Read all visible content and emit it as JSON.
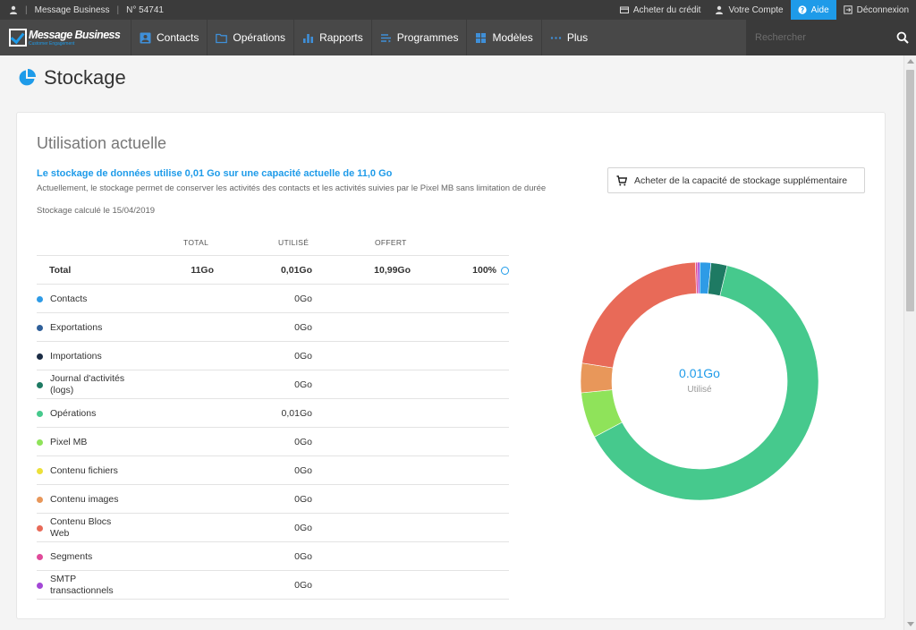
{
  "topbar": {
    "account": "Message Business",
    "account_number": "N° 54741",
    "buy_credit": "Acheter du crédit",
    "my_account": "Votre Compte",
    "help": "Aide",
    "logout": "Déconnexion"
  },
  "nav": {
    "logo": "Message Business",
    "logo_sub": "Customer Engagement",
    "items": [
      {
        "label": "Contacts",
        "icon": "contacts-icon"
      },
      {
        "label": "Opérations",
        "icon": "folder-icon"
      },
      {
        "label": "Rapports",
        "icon": "bar-chart-icon"
      },
      {
        "label": "Programmes",
        "icon": "programs-icon"
      },
      {
        "label": "Modèles",
        "icon": "templates-icon"
      },
      {
        "label": "Plus",
        "icon": "more-icon"
      }
    ],
    "search_placeholder": "Rechercher"
  },
  "page": {
    "title": "Stockage"
  },
  "card": {
    "title": "Utilisation actuelle",
    "summary": "Le stockage de données utilise 0,01 Go sur une capacité actuelle de 11,0 Go",
    "description": "Actuellement, le stockage permet de conserver les activités des contacts et les activités suivies par le Pixel MB sans limitation de durée",
    "calc_date": "Stockage calculé le 15/04/2019",
    "buy_button": "Acheter de la capacité de stockage supplémentaire"
  },
  "table": {
    "headers": {
      "total": "TOTAL",
      "used": "UTILISÉ",
      "offered": "OFFERT"
    },
    "total_row": {
      "label": "Total",
      "total": "11Go",
      "used": "0,01Go",
      "offered": "10,99Go",
      "percent": "100%"
    },
    "rows": [
      {
        "label": "Contacts",
        "used": "0Go",
        "color": "#2e9be6"
      },
      {
        "label": "Exportations",
        "used": "0Go",
        "color": "#2f5f99"
      },
      {
        "label": "Importations",
        "used": "0Go",
        "color": "#1b2c44"
      },
      {
        "label": "Journal d'activités (logs)",
        "used": "0Go",
        "color": "#1e7a63"
      },
      {
        "label": "Opérations",
        "used": "0,01Go",
        "color": "#46c98d"
      },
      {
        "label": "Pixel MB",
        "used": "0Go",
        "color": "#8fe35a"
      },
      {
        "label": "Contenu fichiers",
        "used": "0Go",
        "color": "#ece03a"
      },
      {
        "label": "Contenu images",
        "used": "0Go",
        "color": "#e8975a"
      },
      {
        "label": "Contenu Blocs Web",
        "used": "0Go",
        "color": "#e86a58"
      },
      {
        "label": "Segments",
        "used": "0Go",
        "color": "#e04a9a"
      },
      {
        "label": "SMTP transactionnels",
        "used": "0Go",
        "color": "#a347d6"
      }
    ]
  },
  "chart_data": {
    "type": "pie",
    "center_value": "0.01Go",
    "center_label": "Utilisé",
    "slices": [
      {
        "category": "Segments",
        "share": 0.3,
        "color": "#e04a9a"
      },
      {
        "category": "SMTP transactionnels",
        "share": 0.3,
        "color": "#a347d6"
      },
      {
        "category": "Contacts",
        "share": 1.5,
        "color": "#2e9be6"
      },
      {
        "category": "Journal d'activités (logs)",
        "share": 2.2,
        "color": "#1e7a63"
      },
      {
        "category": "Opérations",
        "share": 63.5,
        "color": "#46c98d"
      },
      {
        "category": "Pixel MB",
        "share": 6.2,
        "color": "#8fe35a"
      },
      {
        "category": "Contenu images",
        "share": 4.0,
        "color": "#e8975a"
      },
      {
        "category": "Contenu Blocs Web",
        "share": 22.0,
        "color": "#e86a58"
      }
    ]
  }
}
